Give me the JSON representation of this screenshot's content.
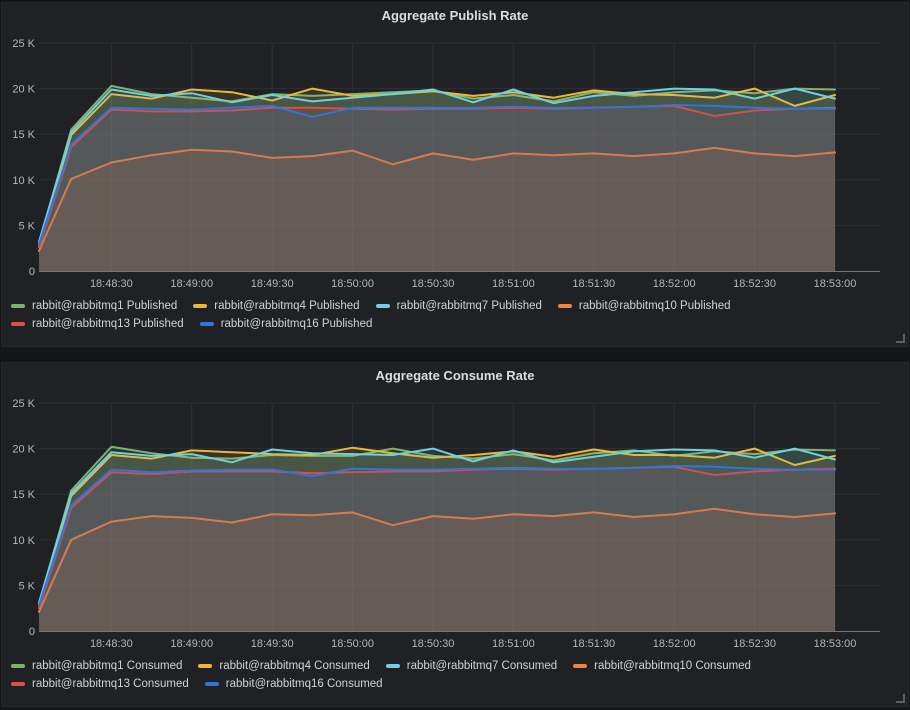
{
  "chart_data": [
    {
      "type": "area",
      "title": "Aggregate Publish Rate",
      "xlabel": "",
      "ylabel": "",
      "ylim": [
        0,
        25000
      ],
      "grid": true,
      "legend_position": "bottom-left",
      "fill_opacity": 0.13,
      "y_tick_labels": [
        "0",
        "5 K",
        "10 K",
        "15 K",
        "20 K",
        "25 K"
      ],
      "x_tick_labels": [
        "18:48:30",
        "18:49:00",
        "18:49:30",
        "18:50:00",
        "18:50:30",
        "18:51:00",
        "18:51:30",
        "18:52:00",
        "18:52:30",
        "18:53:00"
      ],
      "x_times": [
        "18:48:03",
        "18:48:15",
        "18:48:30",
        "18:48:45",
        "18:49:00",
        "18:49:15",
        "18:49:30",
        "18:49:45",
        "18:50:00",
        "18:50:15",
        "18:50:30",
        "18:50:45",
        "18:51:00",
        "18:51:15",
        "18:51:30",
        "18:51:45",
        "18:52:00",
        "18:52:15",
        "18:52:30",
        "18:52:45",
        "18:53:00"
      ],
      "series": [
        {
          "name": "rabbit@rabbitmq1 Published",
          "color": "#7EB26D",
          "values": [
            3000,
            15500,
            20300,
            19400,
            19000,
            18600,
            19400,
            19200,
            19400,
            19600,
            19800,
            18900,
            19300,
            18600,
            19600,
            19200,
            19600,
            19800,
            19500,
            20000,
            19900
          ]
        },
        {
          "name": "rabbit@rabbitmq4 Published",
          "color": "#EAB839",
          "values": [
            2800,
            14900,
            19400,
            18900,
            19900,
            19600,
            18700,
            20000,
            19200,
            19400,
            19700,
            19200,
            19600,
            19000,
            19800,
            19400,
            19300,
            19000,
            20000,
            18100,
            19300
          ]
        },
        {
          "name": "rabbit@rabbitmq7 Published",
          "color": "#6ED0E0",
          "values": [
            3200,
            15200,
            19900,
            19200,
            19500,
            18500,
            19300,
            18600,
            19000,
            19400,
            19900,
            18500,
            19900,
            18400,
            19200,
            19600,
            20000,
            19900,
            18900,
            20000,
            18900
          ]
        },
        {
          "name": "rabbit@rabbitmq10 Published",
          "color": "#EF843C",
          "values": [
            2200,
            10100,
            11900,
            12700,
            13300,
            13100,
            12400,
            12600,
            13200,
            11700,
            12900,
            12200,
            12900,
            12700,
            12900,
            12600,
            12900,
            13500,
            12900,
            12600,
            13000
          ]
        },
        {
          "name": "rabbit@rabbitmq13 Published",
          "color": "#E24D42",
          "values": [
            2600,
            13600,
            17700,
            17500,
            17500,
            17600,
            17900,
            17900,
            17800,
            17700,
            17800,
            17800,
            17900,
            17800,
            17900,
            18000,
            18100,
            17000,
            17600,
            17800,
            17900
          ]
        },
        {
          "name": "rabbit@rabbitmq16 Published",
          "color": "#3274D9",
          "values": [
            2900,
            13900,
            17900,
            17800,
            17700,
            17900,
            18100,
            16900,
            17900,
            17900,
            17900,
            17900,
            18000,
            17900,
            17900,
            18000,
            18200,
            18100,
            17900,
            17800,
            17800
          ]
        }
      ]
    },
    {
      "type": "area",
      "title": "Aggregate Consume Rate",
      "xlabel": "",
      "ylabel": "",
      "ylim": [
        0,
        25000
      ],
      "grid": true,
      "legend_position": "bottom-left",
      "fill_opacity": 0.13,
      "y_tick_labels": [
        "0",
        "5 K",
        "10 K",
        "15 K",
        "20 K",
        "25 K"
      ],
      "x_tick_labels": [
        "18:48:30",
        "18:49:00",
        "18:49:30",
        "18:50:00",
        "18:50:30",
        "18:51:00",
        "18:51:30",
        "18:52:00",
        "18:52:30",
        "18:53:00"
      ],
      "x_times": [
        "18:48:03",
        "18:48:15",
        "18:48:30",
        "18:48:45",
        "18:49:00",
        "18:49:15",
        "18:49:30",
        "18:49:45",
        "18:50:00",
        "18:50:15",
        "18:50:30",
        "18:50:45",
        "18:51:00",
        "18:51:15",
        "18:51:30",
        "18:51:45",
        "18:52:00",
        "18:52:15",
        "18:52:30",
        "18:52:45",
        "18:53:00"
      ],
      "series": [
        {
          "name": "rabbit@rabbitmq1 Consumed",
          "color": "#7EB26D",
          "values": [
            3000,
            15400,
            20200,
            19500,
            19000,
            18900,
            19300,
            19200,
            19200,
            20000,
            19200,
            18900,
            19400,
            18700,
            19500,
            19800,
            19200,
            19700,
            19400,
            19900,
            19800
          ]
        },
        {
          "name": "rabbit@rabbitmq4 Consumed",
          "color": "#EAB839",
          "values": [
            2800,
            14800,
            19300,
            18900,
            19800,
            19600,
            19400,
            19300,
            20100,
            19500,
            19000,
            19300,
            19700,
            19100,
            19900,
            19300,
            19300,
            19000,
            20000,
            18200,
            19200
          ]
        },
        {
          "name": "rabbit@rabbitmq7 Consumed",
          "color": "#6ED0E0",
          "values": [
            3100,
            15100,
            19600,
            19200,
            19400,
            18500,
            19900,
            19500,
            19400,
            19300,
            20000,
            18600,
            19800,
            18500,
            19100,
            19700,
            19900,
            19800,
            19000,
            20000,
            18800
          ]
        },
        {
          "name": "rabbit@rabbitmq10 Consumed",
          "color": "#EF843C",
          "values": [
            2100,
            10000,
            12000,
            12600,
            12400,
            11900,
            12800,
            12700,
            13000,
            11600,
            12600,
            12300,
            12800,
            12600,
            13000,
            12500,
            12800,
            13400,
            12800,
            12500,
            12900
          ]
        },
        {
          "name": "rabbit@rabbitmq13 Consumed",
          "color": "#E24D42",
          "values": [
            2500,
            13500,
            17400,
            17200,
            17500,
            17500,
            17500,
            17300,
            17400,
            17500,
            17500,
            17700,
            17800,
            17700,
            17800,
            17900,
            18000,
            17100,
            17500,
            17700,
            17800
          ]
        },
        {
          "name": "rabbit@rabbitmq16 Consumed",
          "color": "#3274D9",
          "values": [
            2800,
            13800,
            17700,
            17400,
            17600,
            17700,
            17700,
            17000,
            17800,
            17700,
            17700,
            17800,
            17900,
            17800,
            17800,
            17900,
            18100,
            18000,
            17800,
            17700,
            17700
          ]
        }
      ]
    }
  ],
  "theme": {
    "page_bg": "#141619",
    "panel_bg": "#1f2125",
    "grid_color": "#2d2f34",
    "axis_line_color": "#6f737a",
    "tick_text_color": "#b4b7ba",
    "title_color": "#dcdde0",
    "legend_text_color": "#d0d2d4"
  }
}
